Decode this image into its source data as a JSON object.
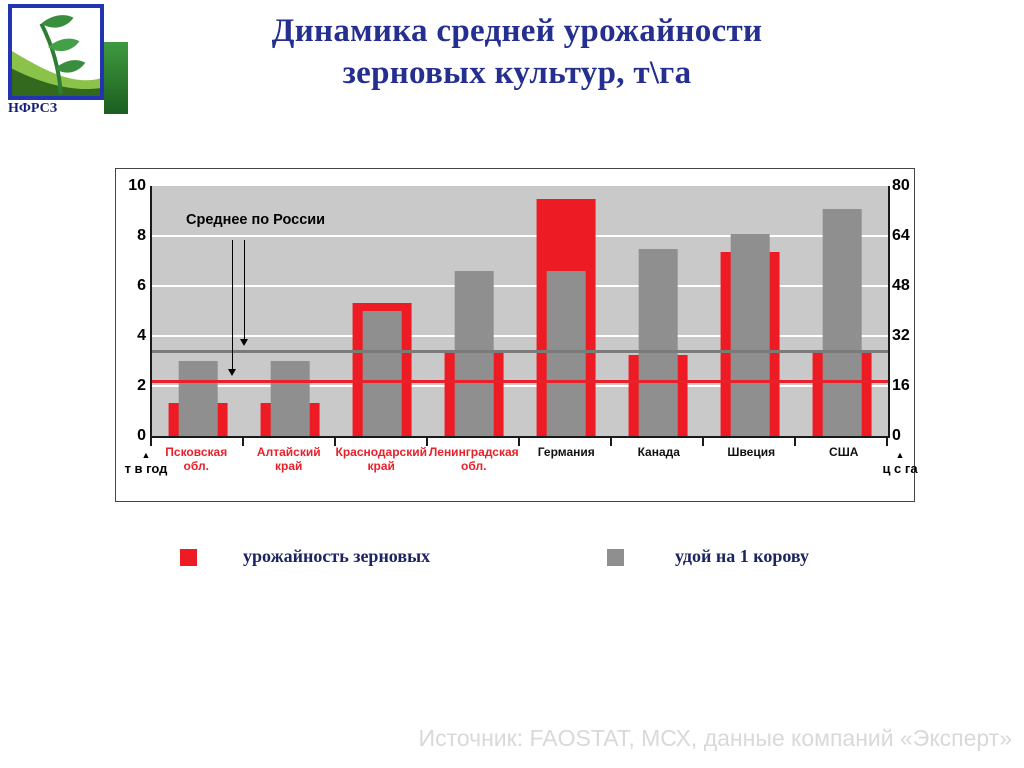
{
  "slide": {
    "logo_text": "НФРСЗ",
    "title_line1": "Динамика средней урожайности",
    "title_line2": "зерновых культур, т\\га",
    "source": "Источник: FAOSTAT, МСХ, данные компаний «Эксперт»"
  },
  "legend": {
    "grain": "урожайность зерновых",
    "milk": "удой на 1 корову"
  },
  "chart_data": {
    "type": "bar",
    "title": "Динамика средней урожайности зерновых культур, т\\га",
    "plot_background": "#C9C9C9",
    "grid": true,
    "categories": [
      {
        "label": "Псковская обл.",
        "lines": [
          "Псковская",
          "обл."
        ],
        "accent": true
      },
      {
        "label": "Алтайский край",
        "lines": [
          "Алтайский",
          "край"
        ],
        "accent": true
      },
      {
        "label": "Краснодарский край",
        "lines": [
          "Краснодарский",
          "край"
        ],
        "accent": true
      },
      {
        "label": "Ленинградская обл.",
        "lines": [
          "Ленинградская",
          "обл."
        ],
        "accent": true
      },
      {
        "label": "Германия",
        "lines": [
          "Германия"
        ],
        "accent": false
      },
      {
        "label": "Канада",
        "lines": [
          "Канада"
        ],
        "accent": false
      },
      {
        "label": "Швеция",
        "lines": [
          "Швеция"
        ],
        "accent": false
      },
      {
        "label": "США",
        "lines": [
          "США"
        ],
        "accent": false
      }
    ],
    "series": [
      {
        "name": "урожайность зерновых",
        "axis": "right",
        "unit": "ц с га",
        "color": "#ED1C24",
        "values": [
          10.5,
          10.5,
          42.5,
          27,
          76,
          26,
          59,
          27
        ]
      },
      {
        "name": "удой на 1 корову",
        "axis": "left",
        "unit": "т в год",
        "color": "#8F8F8F",
        "values": [
          3.0,
          3.0,
          5.0,
          6.6,
          6.6,
          7.5,
          8.1,
          9.1
        ]
      }
    ],
    "annotation": {
      "text": "Среднее по России",
      "grain_avg_cga": 17.5,
      "milk_avg_t": 3.4
    },
    "axes": {
      "left": {
        "label": "т в год",
        "marker": "▲",
        "max": 10,
        "ticks": [
          0,
          2,
          4,
          6,
          8,
          10
        ]
      },
      "right": {
        "label": "ц с га",
        "marker": "▲",
        "max": 80,
        "ticks": [
          0,
          16,
          32,
          48,
          64,
          80
        ]
      }
    }
  }
}
